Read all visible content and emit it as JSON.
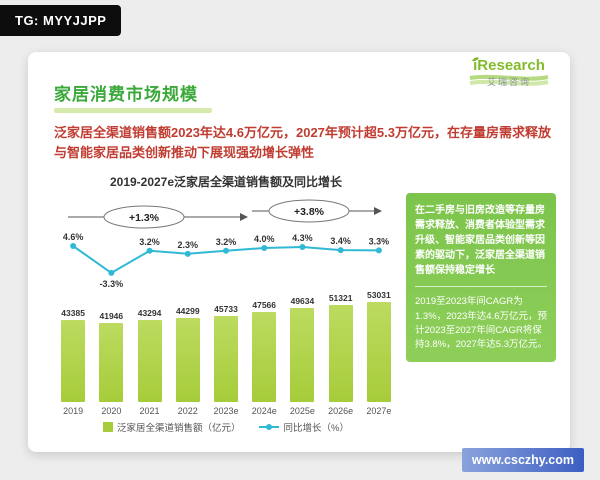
{
  "badge": {
    "text": "TG: MYYJJPP"
  },
  "logo": {
    "brand": "iResearch",
    "cn": "艾瑞咨询"
  },
  "page": {
    "title": "家居消费市场规模",
    "subtitle": "泛家居全渠道销售额2023年达4.6万亿元，2027年预计超5.3万亿元，在存量房需求释放与智能家居品类创新推动下展现强劲增长弹性"
  },
  "side_panel": {
    "para1": "在二手房与旧房改造等存量房需求释放、消费者体验型需求升级、智能家居品类创新等因素的驱动下，泛家居全渠道销售额保持稳定增长",
    "para2": "2019至2023年间CAGR为1.3%，2023年达4.6万亿元，预计2023至2027年间CAGR将保持3.8%，2027年达5.3万亿元。"
  },
  "watermark": {
    "text": "www.csczhy.com"
  },
  "colors": {
    "accent_green": "#3aa93a",
    "headline_red": "#c03c31",
    "bar": "#a6cc3a",
    "line": "#2fb9d4",
    "panel_green": "#7cc44c",
    "watermark_blue": "#3c5ec2"
  },
  "chart_data": {
    "type": "bar",
    "title": "2019-2027e泛家居全渠道销售额及同比增长",
    "categories": [
      "2019",
      "2020",
      "2021",
      "2022",
      "2023e",
      "2024e",
      "2025e",
      "2026e",
      "2027e"
    ],
    "series": [
      {
        "name": "泛家居全渠道销售额（亿元）",
        "type": "bar",
        "color": "#a6cc3a",
        "values": [
          43385,
          41946,
          43294,
          44299,
          45733,
          47566,
          49634,
          51321,
          53031
        ]
      },
      {
        "name": "同比增长（%）",
        "type": "line",
        "color": "#2fb9d4",
        "values": [
          4.6,
          -3.3,
          3.2,
          2.3,
          3.2,
          4.0,
          4.3,
          3.4,
          3.3
        ]
      }
    ],
    "annotations": [
      {
        "label": "+1.3%"
      },
      {
        "label": "+3.8%"
      }
    ],
    "legend_position": "bottom",
    "grid": false,
    "ylabel": "",
    "xlabel": ""
  }
}
